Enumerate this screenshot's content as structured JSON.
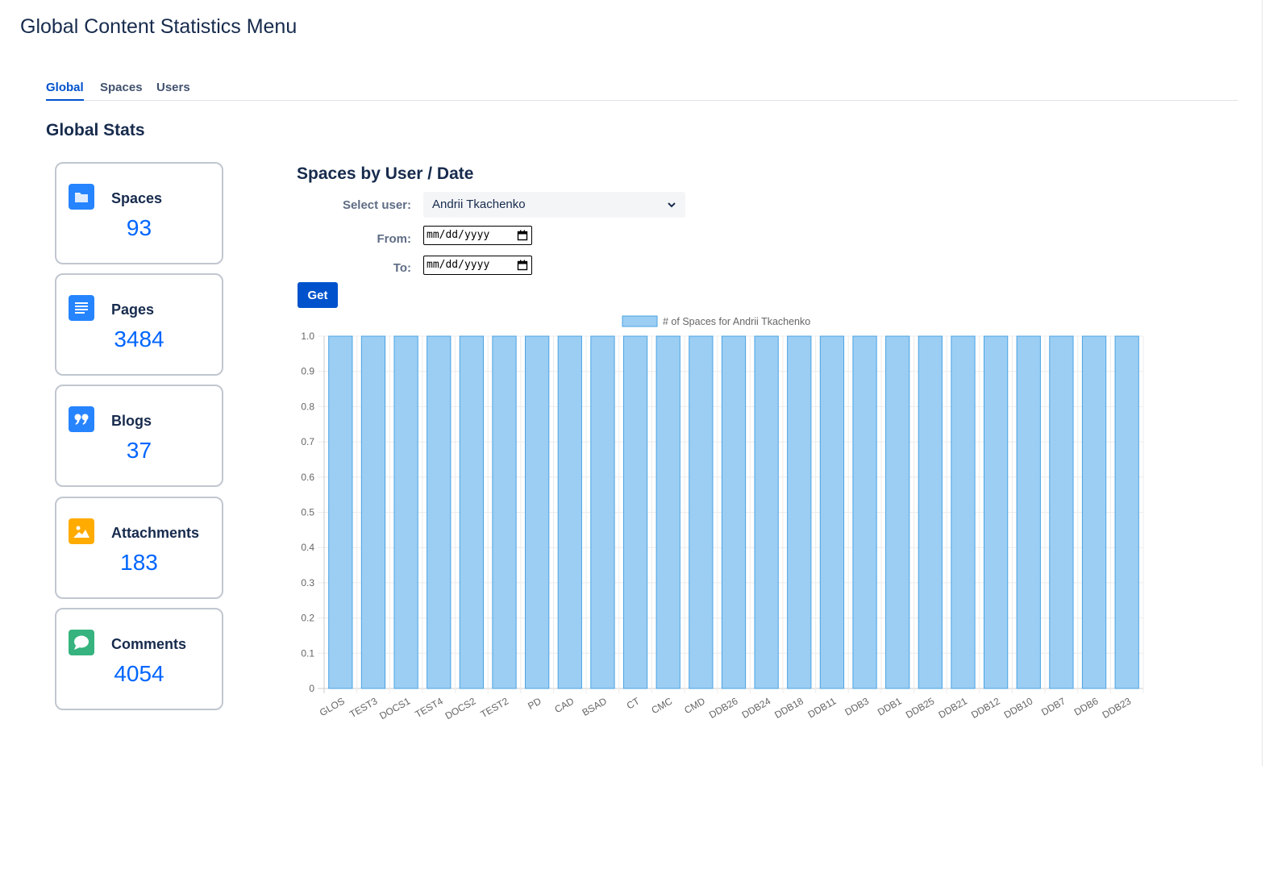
{
  "page": {
    "title": "Global Content Statistics Menu"
  },
  "tabs": [
    {
      "label": "Global",
      "active": true
    },
    {
      "label": "Spaces",
      "active": false
    },
    {
      "label": "Users",
      "active": false
    }
  ],
  "section_title": "Global Stats",
  "cards": [
    {
      "label": "Spaces",
      "value": "93",
      "icon": "folder-icon",
      "color": "#2684ff"
    },
    {
      "label": "Pages",
      "value": "3484",
      "icon": "document-icon",
      "color": "#2684ff"
    },
    {
      "label": "Blogs",
      "value": "37",
      "icon": "quote-icon",
      "color": "#2684ff"
    },
    {
      "label": "Attachments",
      "value": "183",
      "icon": "image-icon",
      "color": "#ffab00"
    },
    {
      "label": "Comments",
      "value": "4054",
      "icon": "comment-icon",
      "color": "#36b37e"
    }
  ],
  "panel": {
    "title": "Spaces by User / Date",
    "select_user_label": "Select user:",
    "selected_user": "Andrii Tkachenko",
    "from_label": "From:",
    "to_label": "To:",
    "date_placeholder": "mm/dd/yyyy",
    "get_label": "Get"
  },
  "chart_data": {
    "type": "bar",
    "legend": "# of Spaces for Andrii Tkachenko",
    "categories": [
      "GLOS",
      "TEST3",
      "DOCS1",
      "TEST4",
      "DOCS2",
      "TEST2",
      "PD",
      "CAD",
      "BSAD",
      "CT",
      "CMC",
      "CMD",
      "DDB26",
      "DDB24",
      "DDB18",
      "DDB11",
      "DDB3",
      "DDB1",
      "DDB25",
      "DDB21",
      "DDB12",
      "DDB10",
      "DDB7",
      "DDB6",
      "DDB23"
    ],
    "values": [
      1,
      1,
      1,
      1,
      1,
      1,
      1,
      1,
      1,
      1,
      1,
      1,
      1,
      1,
      1,
      1,
      1,
      1,
      1,
      1,
      1,
      1,
      1,
      1,
      1
    ],
    "yticks": [
      "0",
      "0.1",
      "0.2",
      "0.3",
      "0.4",
      "0.5",
      "0.6",
      "0.7",
      "0.8",
      "0.9",
      "1.0"
    ],
    "ylim": [
      0,
      1
    ],
    "grid": true,
    "legend_position": "top",
    "bar_fill": "#9ccef3",
    "bar_stroke": "#4aa3e3"
  }
}
